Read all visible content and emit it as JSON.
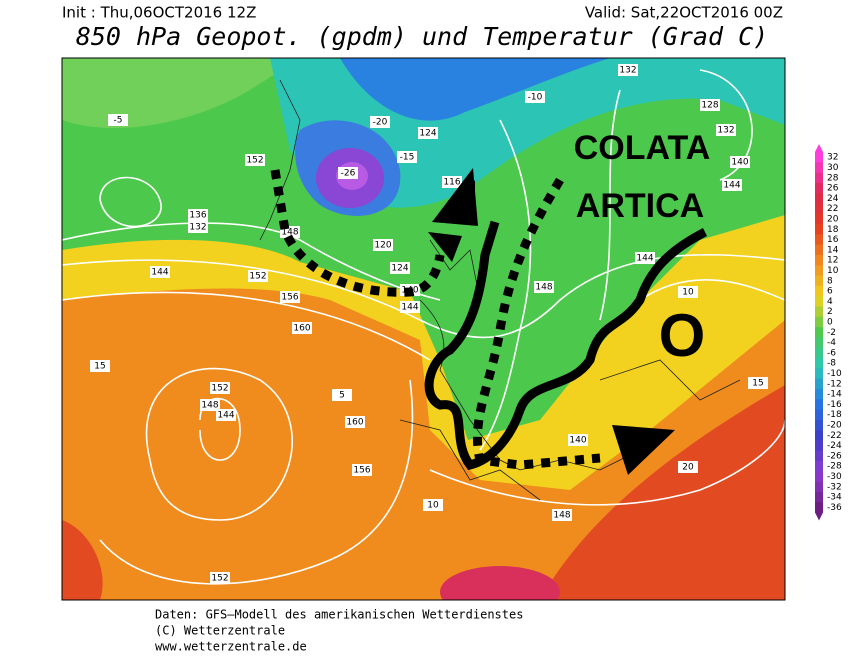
{
  "header": {
    "init": "Init : Thu,06OCT2016 12Z",
    "valid": "Valid: Sat,22OCT2016 00Z",
    "title": "850 hPa Geopot. (gpdm) und Temperatur (Grad C)"
  },
  "annotations": {
    "label_lines": [
      "COLATA",
      "ARTICA"
    ],
    "marker": "O"
  },
  "colorbar": {
    "ticks": [
      32,
      30,
      28,
      26,
      24,
      22,
      20,
      18,
      16,
      14,
      12,
      10,
      8,
      6,
      4,
      2,
      0,
      -2,
      -4,
      -6,
      -8,
      -10,
      -12,
      -14,
      -16,
      -18,
      -20,
      -22,
      -24,
      -26,
      -28,
      -30,
      -32,
      -34,
      -36
    ]
  },
  "map_labels": [
    132,
    128,
    132,
    140,
    144,
    136,
    132,
    144,
    148,
    152,
    124,
    116,
    120,
    124,
    140,
    144,
    148,
    144,
    152,
    156,
    160,
    152,
    148,
    144,
    160,
    156,
    140,
    148,
    152,
    -5,
    -10,
    -15,
    -20,
    -26,
    5,
    10,
    15,
    20,
    15,
    10
  ],
  "footer": {
    "lines": [
      "Daten: GFS–Modell des amerikanischen Wetterdienstes",
      "(C) Wetterzentrale",
      "www.wetterzentrale.de"
    ]
  }
}
